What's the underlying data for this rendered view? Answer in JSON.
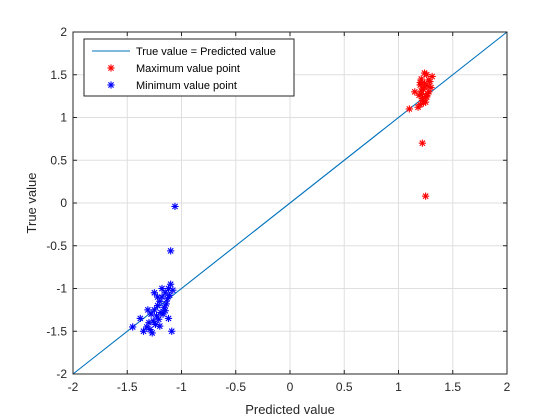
{
  "chart_data": {
    "type": "scatter",
    "title": "",
    "xlabel": "Predicted value",
    "ylabel": "True value",
    "xlim": [
      -2,
      2
    ],
    "ylim": [
      -2,
      2
    ],
    "xticks": [
      -2,
      -1.5,
      -1,
      -0.5,
      0,
      0.5,
      1,
      1.5,
      2
    ],
    "yticks": [
      -2,
      -1.5,
      -1,
      -0.5,
      0,
      0.5,
      1,
      1.5,
      2
    ],
    "grid": true,
    "legend_position": "top-left",
    "series": [
      {
        "name": "True value = Predicted value",
        "kind": "line",
        "color": "#0072BD",
        "x": [
          -2,
          2
        ],
        "y": [
          -2,
          2
        ]
      },
      {
        "name": "Maximum value point",
        "kind": "marker",
        "marker": "asterisk",
        "color": "#FF0000",
        "x": [
          1.15,
          1.18,
          1.1,
          1.2,
          1.22,
          1.25,
          1.28,
          1.3,
          1.24,
          1.21,
          1.26,
          1.29,
          1.23,
          1.27,
          1.2,
          1.22,
          1.25,
          1.19,
          1.31,
          1.24,
          1.28,
          1.21,
          1.26,
          1.23,
          1.2,
          1.27,
          1.22,
          1.25,
          1.24,
          1.21
        ],
        "y": [
          1.3,
          1.12,
          1.1,
          1.15,
          1.2,
          1.25,
          1.3,
          1.35,
          1.4,
          1.45,
          1.5,
          1.42,
          1.33,
          1.28,
          1.38,
          1.22,
          1.18,
          1.26,
          1.48,
          1.36,
          1.44,
          1.31,
          1.24,
          1.17,
          1.41,
          1.37,
          0.7,
          0.08,
          1.52,
          1.27
        ]
      },
      {
        "name": "Minimum value point",
        "kind": "marker",
        "marker": "asterisk",
        "color": "#0000FF",
        "x": [
          -1.06,
          -1.1,
          -1.45,
          -1.38,
          -1.35,
          -1.32,
          -1.3,
          -1.28,
          -1.25,
          -1.22,
          -1.2,
          -1.18,
          -1.15,
          -1.12,
          -1.1,
          -1.08,
          -1.26,
          -1.23,
          -1.19,
          -1.16,
          -1.13,
          -1.29,
          -1.24,
          -1.21,
          -1.17,
          -1.14,
          -1.11,
          -1.27,
          -1.2,
          -1.15,
          -1.09,
          -1.31,
          -1.18,
          -1.22,
          -1.12,
          -1.25
        ],
        "y": [
          -0.04,
          -0.56,
          -1.45,
          -1.35,
          -1.5,
          -1.45,
          -1.4,
          -1.3,
          -1.25,
          -1.2,
          -1.15,
          -1.1,
          -1.05,
          -1.0,
          -0.95,
          -1.02,
          -1.38,
          -1.32,
          -1.28,
          -1.22,
          -1.12,
          -1.48,
          -1.42,
          -1.36,
          -1.3,
          -1.18,
          -1.08,
          -1.52,
          -1.44,
          -1.26,
          -1.5,
          -1.25,
          -1.0,
          -1.1,
          -1.35,
          -1.05
        ]
      }
    ]
  }
}
